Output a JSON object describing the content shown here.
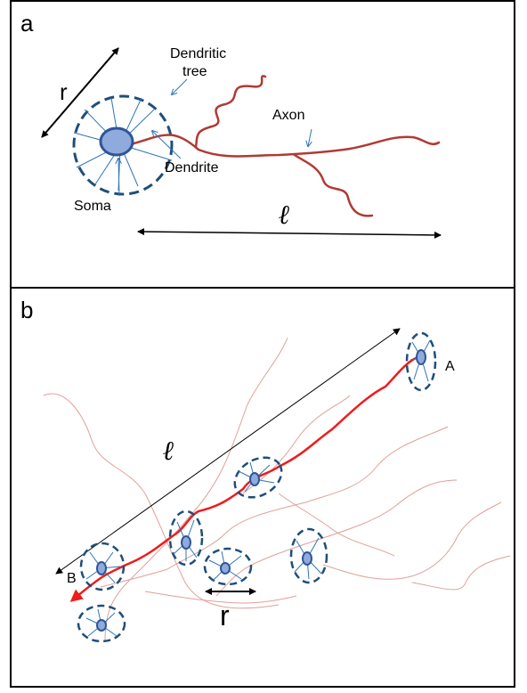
{
  "panel_a": {
    "panel_letter": "a",
    "labels": {
      "r": "r",
      "dendritic_tree": [
        "Dendritic",
        "tree"
      ],
      "axon": "Axon",
      "dendrite": "Dendrite",
      "soma": "Soma",
      "length": "ℓ"
    }
  },
  "panel_b": {
    "panel_letter": "b",
    "labels": {
      "length": "ℓ",
      "r": "r",
      "point_a": "A",
      "point_b": "B"
    }
  },
  "colors": {
    "axon": "#b03a35",
    "soma_fill": "#8faadc",
    "soma_stroke": "#2f5597",
    "dendrite": "#2e75b6",
    "tree_dash": "#1f4e79",
    "background_axons": "#e0a09a",
    "path": "#ee1c1c"
  }
}
